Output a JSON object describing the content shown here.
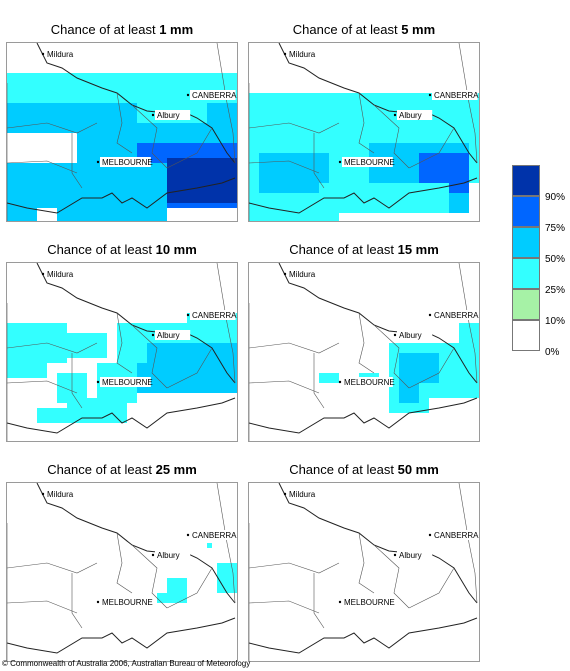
{
  "panels": [
    {
      "title_prefix": "Chance of at least",
      "amount": "1 mm",
      "cells": [
        [
          0,
          30,
          240,
          60,
          2
        ],
        [
          0,
          60,
          240,
          90,
          3
        ],
        [
          70,
          90,
          240,
          120,
          3
        ],
        [
          130,
          100,
          240,
          165,
          4
        ],
        [
          160,
          115,
          230,
          160,
          5
        ],
        [
          0,
          120,
          70,
          165,
          3
        ],
        [
          50,
          120,
          160,
          185,
          3
        ],
        [
          0,
          165,
          30,
          180,
          3
        ],
        [
          0,
          40,
          40,
          60,
          2
        ],
        [
          100,
          40,
          170,
          60,
          2
        ],
        [
          130,
          60,
          200,
          80,
          2
        ]
      ],
      "cities": {
        "mildura": "Mildura",
        "canberra": "CANBERRA",
        "albury": "Albury",
        "melbourne": "MELBOURNE"
      }
    },
    {
      "title_prefix": "Chance of at least",
      "amount": "5 mm",
      "cells": [
        [
          0,
          50,
          240,
          100,
          2
        ],
        [
          0,
          100,
          90,
          180,
          2
        ],
        [
          90,
          80,
          240,
          140,
          2
        ],
        [
          10,
          110,
          80,
          150,
          3
        ],
        [
          120,
          100,
          220,
          150,
          3
        ],
        [
          150,
          120,
          220,
          170,
          3
        ],
        [
          170,
          110,
          220,
          150,
          4
        ],
        [
          70,
          140,
          200,
          170,
          2
        ],
        [
          180,
          50,
          230,
          80,
          2
        ]
      ],
      "cities": {
        "mildura": "Mildura",
        "canberra": "CANBERRA",
        "albury": "Albury",
        "melbourne": "MELBOURNE"
      }
    },
    {
      "title_prefix": "Chance of at least",
      "amount": "10 mm",
      "cells": [
        [
          0,
          60,
          60,
          100,
          2
        ],
        [
          60,
          70,
          100,
          95,
          2
        ],
        [
          110,
          60,
          230,
          100,
          2
        ],
        [
          120,
          90,
          230,
          130,
          2
        ],
        [
          130,
          100,
          230,
          130,
          3
        ],
        [
          140,
          80,
          230,
          110,
          3
        ],
        [
          0,
          100,
          40,
          115,
          2
        ],
        [
          50,
          110,
          80,
          140,
          2
        ],
        [
          90,
          100,
          130,
          140,
          2
        ],
        [
          60,
          135,
          120,
          160,
          2
        ],
        [
          30,
          145,
          60,
          160,
          2
        ],
        [
          180,
          50,
          230,
          70,
          2
        ]
      ],
      "cities": {
        "mildura": "Mildura",
        "canberra": "CANBERRA",
        "albury": "Albury",
        "melbourne": "MELBOURNE"
      }
    },
    {
      "title_prefix": "Chance of at least",
      "amount": "15 mm",
      "cells": [
        [
          140,
          80,
          230,
          135,
          2
        ],
        [
          150,
          90,
          190,
          120,
          3
        ],
        [
          210,
          60,
          230,
          80,
          2
        ],
        [
          70,
          110,
          90,
          120,
          2
        ],
        [
          110,
          110,
          130,
          120,
          2
        ],
        [
          140,
          135,
          180,
          150,
          2
        ],
        [
          150,
          120,
          170,
          140,
          3
        ]
      ],
      "cities": {
        "mildura": "Mildura",
        "canberra": "CANBERRA",
        "albury": "Albury",
        "melbourne": "MELBOURNE"
      }
    },
    {
      "title_prefix": "Chance of at least",
      "amount": "25 mm",
      "cells": [
        [
          210,
          80,
          230,
          110,
          2
        ],
        [
          160,
          95,
          180,
          110,
          2
        ],
        [
          150,
          110,
          170,
          120,
          2
        ],
        [
          170,
          110,
          180,
          120,
          2
        ],
        [
          200,
          60,
          205,
          65,
          2
        ]
      ],
      "cities": {
        "mildura": "Mildura",
        "canberra": "CANBERRA",
        "albury": "Albury",
        "melbourne": "MELBOURNE"
      }
    },
    {
      "title_prefix": "Chance of at least",
      "amount": "50 mm",
      "cells": [],
      "cities": {
        "mildura": "Mildura",
        "canberra": "CANBERRA",
        "albury": "Albury",
        "melbourne": "MELBOURNE"
      }
    }
  ],
  "legend": {
    "colors": [
      "#ffffff",
      "#a6f2a6",
      "#33ffff",
      "#00ccff",
      "#0066ff",
      "#0033aa"
    ],
    "ticks": [
      "0%",
      "10%",
      "25%",
      "50%",
      "75%",
      "90%"
    ]
  },
  "copyright": "© Commonwealth of Australia 2006, Australian Bureau of Meteorology"
}
